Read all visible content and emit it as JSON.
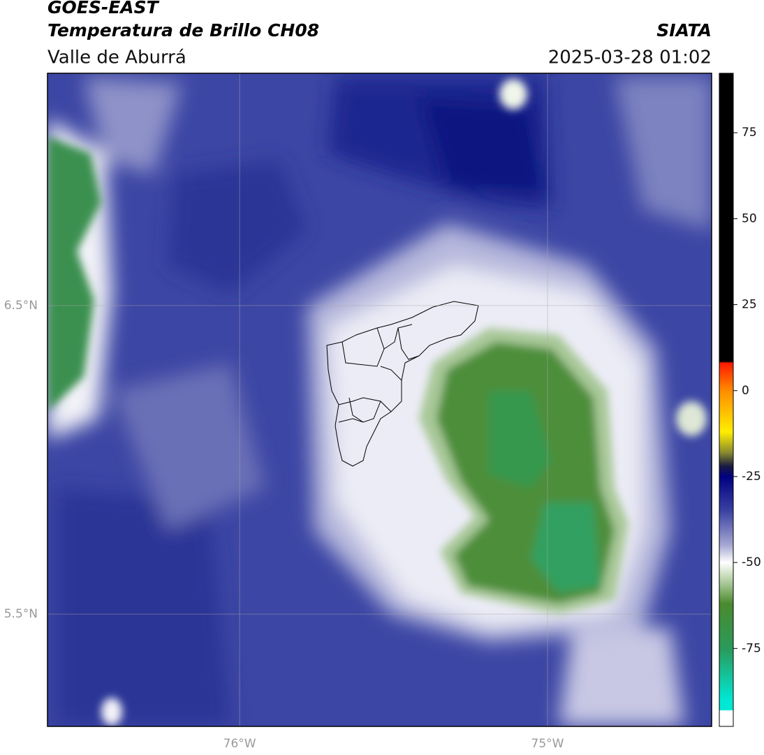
{
  "header": {
    "title": "GOES-EAST",
    "subtitle": "Temperatura de Brillo CH08",
    "region": "Valle de Aburrá",
    "source": "SIATA",
    "datetime": "2025-03-28 01:02"
  },
  "map": {
    "xlim": [
      -76.624,
      -74.467
    ],
    "ylim": [
      5.136,
      7.253
    ],
    "xticks": [
      {
        "value": -76,
        "label": "76°W"
      },
      {
        "value": -75,
        "label": "75°W"
      }
    ],
    "yticks": [
      {
        "value": 6.5,
        "label": "6.5°N"
      },
      {
        "value": 5.5,
        "label": "5.5°N"
      }
    ],
    "grid": true
  },
  "colorbar": {
    "lim": [
      -93,
      92.3
    ],
    "ticks": [
      75,
      50,
      25,
      0,
      -25,
      -50,
      -75
    ],
    "stops": [
      {
        "value": 92.3,
        "color": "#000000"
      },
      {
        "value": 8.5,
        "color": "#000000"
      },
      {
        "value": 8,
        "color": "#ff1a00"
      },
      {
        "value": 0,
        "color": "#ff8c00"
      },
      {
        "value": -12,
        "color": "#ffee00"
      },
      {
        "value": -18,
        "color": "#8a8a30"
      },
      {
        "value": -22,
        "color": "#1a1a40"
      },
      {
        "value": -25,
        "color": "#000080"
      },
      {
        "value": -35,
        "color": "#3a42a2"
      },
      {
        "value": -45,
        "color": "#a6a8d2"
      },
      {
        "value": -50,
        "color": "#ffffff"
      },
      {
        "value": -55,
        "color": "#b8d2a8"
      },
      {
        "value": -62,
        "color": "#4a8a2e"
      },
      {
        "value": -75,
        "color": "#2a9a5a"
      },
      {
        "value": -90,
        "color": "#00e8d4"
      }
    ]
  }
}
